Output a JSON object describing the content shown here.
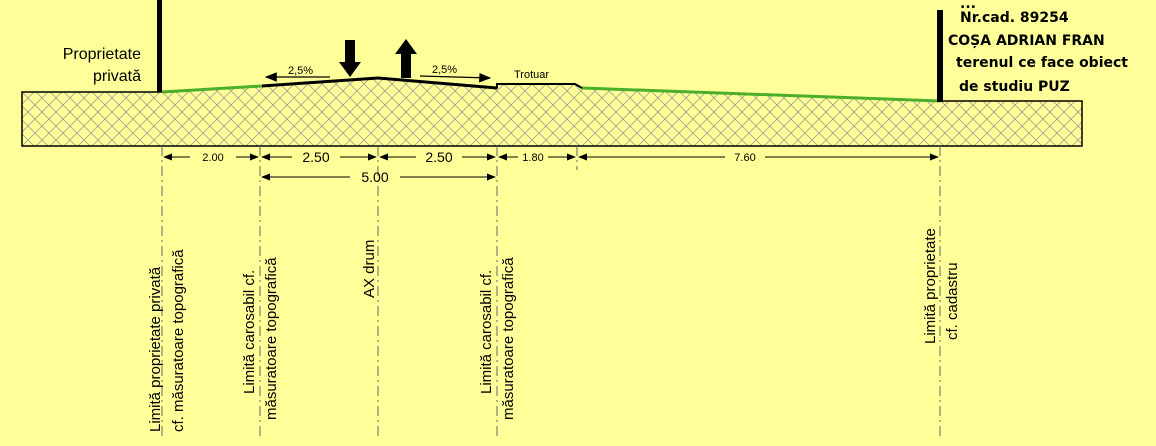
{
  "left_owner": {
    "line1": "Proprietate",
    "line2": "privată"
  },
  "right_owner": {
    "line0": "...",
    "cadastral": "Nr.cad. 89254",
    "name": "COȘA ADRIAN FRAN",
    "line3": "terenul ce face obiect",
    "line4": "de studiu PUZ"
  },
  "slopes": {
    "left": "2,5%",
    "right": "2,5%"
  },
  "sidewalk_label": "Trotuar",
  "dimensions": {
    "d1": "2.00",
    "d2": "2.50",
    "d3": "2.50",
    "d4": "1.80",
    "d5": "7.60",
    "total": "5.00"
  },
  "vertical_labels": {
    "priv_limit_1": "Limită proprietate privată",
    "priv_limit_2": "cf. măsuratoare topografică",
    "carr_left_1": "Limită carosabil cf.",
    "carr_left_2": "măsuratoare topografică",
    "axis": "AX drum",
    "carr_right_1": "Limită carosabil cf.",
    "carr_right_2": "măsuratoare topografică",
    "prop_limit_1": "Limită proprietate",
    "prop_limit_2": "cf. cadastru"
  },
  "colors": {
    "background": "#ffff99",
    "ground_fill": "#ffff99",
    "hatch": "#999999",
    "grass": "#4caf2a",
    "line": "#000000"
  }
}
